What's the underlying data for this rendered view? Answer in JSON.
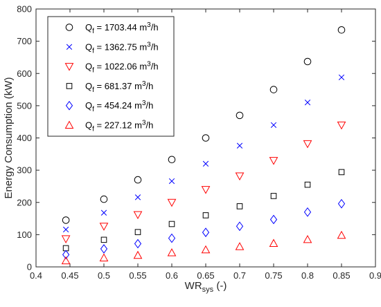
{
  "chart_data": {
    "type": "scatter",
    "xlabel": "WR",
    "xlabel_sub": "sys",
    "xlabel_suffix": " (-)",
    "ylabel": "Energy Consumption (kW)",
    "xlim": [
      0.4,
      0.9
    ],
    "ylim": [
      0,
      800
    ],
    "x_ticks": [
      "0.4",
      "0.45",
      "0.5",
      "0.55",
      "0.6",
      "0.65",
      "0.7",
      "0.75",
      "0.8",
      "0.85",
      "0.9"
    ],
    "y_ticks": [
      "0",
      "100",
      "200",
      "300",
      "400",
      "500",
      "600",
      "700",
      "800"
    ],
    "grid": false,
    "legend_position": "top-left",
    "x": [
      0.444,
      0.5,
      0.55,
      0.6,
      0.65,
      0.7,
      0.75,
      0.8,
      0.85
    ],
    "series": [
      {
        "name_main": "Q",
        "name_sub": "f",
        "name_rest": " = 1703.44 m",
        "name_sup": "3",
        "name_end": "/h",
        "marker": "circle",
        "color": "#000000",
        "values": [
          145,
          210,
          270,
          333,
          400,
          470,
          550,
          637,
          735
        ]
      },
      {
        "name_main": "Q",
        "name_sub": "f",
        "name_rest": " = 1362.75 m",
        "name_sup": "3",
        "name_end": "/h",
        "marker": "x",
        "color": "#0000ff",
        "values": [
          116,
          168,
          216,
          266,
          320,
          376,
          440,
          510,
          588
        ]
      },
      {
        "name_main": "Q",
        "name_sub": "f",
        "name_rest": " = 1022.06 m",
        "name_sup": "3",
        "name_end": "/h",
        "marker": "triangle-down",
        "color": "#ff0000",
        "values": [
          87,
          126,
          162,
          200,
          240,
          282,
          330,
          382,
          440
        ]
      },
      {
        "name_main": "Q",
        "name_sub": "f",
        "name_rest": " = 681.37 m",
        "name_sup": "3",
        "name_end": "/h",
        "marker": "square",
        "color": "#000000",
        "values": [
          58,
          84,
          108,
          133,
          160,
          188,
          220,
          255,
          294
        ]
      },
      {
        "name_main": "Q",
        "name_sub": "f",
        "name_rest": " = 454.24 m",
        "name_sup": "3",
        "name_end": "/h",
        "marker": "diamond",
        "color": "#0000ff",
        "values": [
          38,
          56,
          72,
          89,
          107,
          126,
          147,
          170,
          196
        ]
      },
      {
        "name_main": "Q",
        "name_sub": "f",
        "name_rest": " = 227.12 m",
        "name_sup": "3",
        "name_end": "/h",
        "marker": "triangle-up",
        "color": "#ff0000",
        "values": [
          19,
          28,
          36,
          44,
          53,
          63,
          73,
          85,
          98
        ]
      }
    ]
  }
}
